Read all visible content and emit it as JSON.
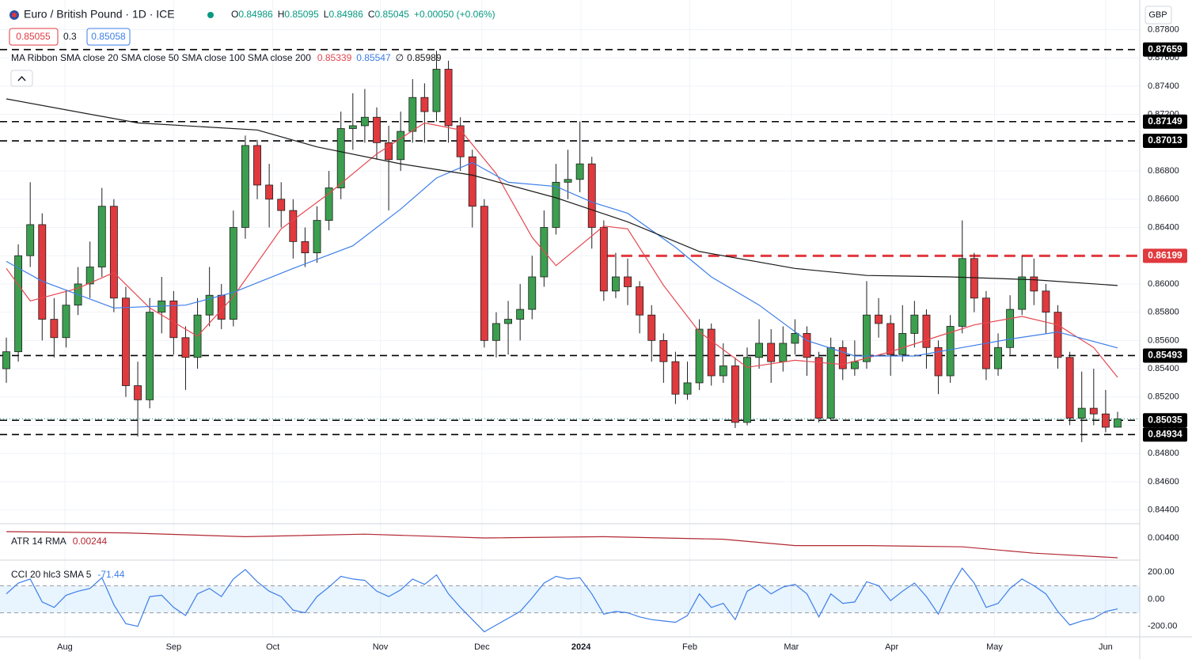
{
  "chart_data": {
    "type": "candlestick",
    "title": "Euro / British Pound · 1D · ICE",
    "ohlc_prefixes": [
      "O",
      "H",
      "L",
      "C"
    ],
    "change": "+0.00050 (+0.06%)",
    "bid": "0.85055",
    "spread": "0.3",
    "ask": "0.85058",
    "currency": "GBP",
    "ma_legend": "MA Ribbon SMA close 20 SMA close 50 SMA close 100 SMA close 200",
    "ma_empty": "∅",
    "up_color": "#3c9f4f",
    "down_color": "#e0393e",
    "candles": [
      [
        0.854,
        0.8562,
        0.853,
        0.8552
      ],
      [
        0.8552,
        0.8628,
        0.8545,
        0.862
      ],
      [
        0.862,
        0.8672,
        0.8612,
        0.8642
      ],
      [
        0.8642,
        0.865,
        0.856,
        0.8575
      ],
      [
        0.8575,
        0.859,
        0.8548,
        0.8562
      ],
      [
        0.8562,
        0.8596,
        0.8555,
        0.8585
      ],
      [
        0.8585,
        0.8612,
        0.8578,
        0.86
      ],
      [
        0.86,
        0.863,
        0.859,
        0.8612
      ],
      [
        0.8612,
        0.8668,
        0.8605,
        0.8655
      ],
      [
        0.8655,
        0.866,
        0.858,
        0.859
      ],
      [
        0.859,
        0.8598,
        0.852,
        0.8528
      ],
      [
        0.8528,
        0.8545,
        0.8492,
        0.8518
      ],
      [
        0.8518,
        0.859,
        0.8512,
        0.858
      ],
      [
        0.858,
        0.8605,
        0.8565,
        0.8588
      ],
      [
        0.8588,
        0.8595,
        0.855,
        0.8562
      ],
      [
        0.8562,
        0.857,
        0.8525,
        0.8548
      ],
      [
        0.8548,
        0.859,
        0.854,
        0.8578
      ],
      [
        0.8578,
        0.8612,
        0.857,
        0.8592
      ],
      [
        0.8592,
        0.86,
        0.8568,
        0.8575
      ],
      [
        0.8575,
        0.8652,
        0.857,
        0.864
      ],
      [
        0.864,
        0.8705,
        0.8632,
        0.8698
      ],
      [
        0.8698,
        0.8702,
        0.866,
        0.867
      ],
      [
        0.867,
        0.8685,
        0.864,
        0.866
      ],
      [
        0.866,
        0.8672,
        0.864,
        0.8652
      ],
      [
        0.8652,
        0.866,
        0.8618,
        0.863
      ],
      [
        0.863,
        0.864,
        0.8612,
        0.8622
      ],
      [
        0.8622,
        0.8655,
        0.8615,
        0.8645
      ],
      [
        0.8645,
        0.868,
        0.8638,
        0.8668
      ],
      [
        0.8668,
        0.8722,
        0.866,
        0.871
      ],
      [
        0.871,
        0.8735,
        0.8695,
        0.8712
      ],
      [
        0.8712,
        0.8738,
        0.87,
        0.8718
      ],
      [
        0.8718,
        0.8725,
        0.8688,
        0.87
      ],
      [
        0.87,
        0.8712,
        0.8652,
        0.8688
      ],
      [
        0.8688,
        0.8722,
        0.868,
        0.8708
      ],
      [
        0.8708,
        0.8745,
        0.87,
        0.8732
      ],
      [
        0.8732,
        0.8742,
        0.87,
        0.8722
      ],
      [
        0.8722,
        0.8765,
        0.8715,
        0.8752
      ],
      [
        0.8752,
        0.8758,
        0.87,
        0.8712
      ],
      [
        0.8712,
        0.8718,
        0.868,
        0.869
      ],
      [
        0.869,
        0.8695,
        0.864,
        0.8655
      ],
      [
        0.8655,
        0.866,
        0.8555,
        0.856
      ],
      [
        0.856,
        0.858,
        0.8548,
        0.8572
      ],
      [
        0.8572,
        0.8588,
        0.855,
        0.8575
      ],
      [
        0.8575,
        0.86,
        0.856,
        0.8582
      ],
      [
        0.8582,
        0.862,
        0.8575,
        0.8605
      ],
      [
        0.8605,
        0.8652,
        0.8598,
        0.864
      ],
      [
        0.864,
        0.8685,
        0.8635,
        0.8672
      ],
      [
        0.8672,
        0.8695,
        0.866,
        0.8674
      ],
      [
        0.8674,
        0.8715,
        0.8665,
        0.8685
      ],
      [
        0.8685,
        0.869,
        0.8625,
        0.864
      ],
      [
        0.864,
        0.8645,
        0.8588,
        0.8595
      ],
      [
        0.8595,
        0.8622,
        0.859,
        0.8605
      ],
      [
        0.8605,
        0.8618,
        0.8585,
        0.8598
      ],
      [
        0.8598,
        0.8602,
        0.8565,
        0.8578
      ],
      [
        0.8578,
        0.8585,
        0.8545,
        0.856
      ],
      [
        0.856,
        0.8565,
        0.853,
        0.8545
      ],
      [
        0.8545,
        0.8552,
        0.8515,
        0.8522
      ],
      [
        0.8522,
        0.8545,
        0.8518,
        0.853
      ],
      [
        0.853,
        0.8575,
        0.8525,
        0.8568
      ],
      [
        0.8568,
        0.8572,
        0.8528,
        0.8535
      ],
      [
        0.8535,
        0.8558,
        0.853,
        0.8542
      ],
      [
        0.8542,
        0.8548,
        0.8498,
        0.8502
      ],
      [
        0.8502,
        0.8555,
        0.85,
        0.8548
      ],
      [
        0.8548,
        0.8575,
        0.854,
        0.8558
      ],
      [
        0.8558,
        0.8568,
        0.853,
        0.8545
      ],
      [
        0.8545,
        0.857,
        0.8538,
        0.8558
      ],
      [
        0.8558,
        0.8575,
        0.855,
        0.8565
      ],
      [
        0.8565,
        0.857,
        0.8535,
        0.8548
      ],
      [
        0.8548,
        0.8552,
        0.8502,
        0.8505
      ],
      [
        0.8505,
        0.8562,
        0.8503,
        0.8555
      ],
      [
        0.8555,
        0.856,
        0.8532,
        0.854
      ],
      [
        0.854,
        0.856,
        0.8535,
        0.8545
      ],
      [
        0.8545,
        0.8602,
        0.854,
        0.8578
      ],
      [
        0.8578,
        0.859,
        0.8562,
        0.8572
      ],
      [
        0.8572,
        0.8578,
        0.8535,
        0.855
      ],
      [
        0.855,
        0.8585,
        0.8545,
        0.8565
      ],
      [
        0.8565,
        0.8588,
        0.8555,
        0.8578
      ],
      [
        0.8578,
        0.8582,
        0.854,
        0.8555
      ],
      [
        0.8555,
        0.856,
        0.8522,
        0.8535
      ],
      [
        0.8535,
        0.8578,
        0.853,
        0.857
      ],
      [
        0.857,
        0.8645,
        0.8565,
        0.8618
      ],
      [
        0.8618,
        0.8622,
        0.858,
        0.859
      ],
      [
        0.859,
        0.8595,
        0.8532,
        0.854
      ],
      [
        0.854,
        0.8565,
        0.8535,
        0.8555
      ],
      [
        0.8555,
        0.8592,
        0.855,
        0.8582
      ],
      [
        0.8582,
        0.862,
        0.8578,
        0.8605
      ],
      [
        0.8605,
        0.8618,
        0.8585,
        0.8595
      ],
      [
        0.8595,
        0.86,
        0.8565,
        0.858
      ],
      [
        0.858,
        0.8585,
        0.854,
        0.8548
      ],
      [
        0.8548,
        0.8552,
        0.85,
        0.8505
      ],
      [
        0.8505,
        0.8538,
        0.8488,
        0.8512
      ],
      [
        0.8512,
        0.854,
        0.85,
        0.8508
      ],
      [
        0.8508,
        0.8525,
        0.8495,
        0.84986
      ],
      [
        0.84986,
        0.85095,
        0.84986,
        0.85045
      ]
    ],
    "ma": [
      {
        "color": "#e5474f",
        "x": [
          0,
          2,
          6,
          9,
          12,
          16,
          19,
          23,
          27,
          31,
          35,
          38,
          41,
          44,
          46,
          50,
          52,
          55,
          58,
          62,
          66,
          70,
          74,
          78,
          81,
          85,
          88,
          91,
          93
        ],
        "values": [
          0.8611,
          0.8588,
          0.8597,
          0.8608,
          0.8583,
          0.8563,
          0.8591,
          0.8639,
          0.8664,
          0.8692,
          0.8714,
          0.8709,
          0.8678,
          0.8633,
          0.8613,
          0.8641,
          0.8639,
          0.8599,
          0.8566,
          0.8541,
          0.8546,
          0.8543,
          0.8552,
          0.8563,
          0.8571,
          0.8577,
          0.8571,
          0.8555,
          0.85339
        ]
      },
      {
        "color": "#3d7ee8",
        "x": [
          0,
          3,
          9,
          15,
          19,
          24,
          29,
          33,
          36,
          39,
          42,
          46,
          49,
          52,
          56,
          59,
          63,
          67,
          71,
          76,
          80,
          84,
          88,
          93
        ],
        "values": [
          0.8616,
          0.8602,
          0.8583,
          0.8585,
          0.8594,
          0.8611,
          0.8627,
          0.8653,
          0.8675,
          0.8686,
          0.8672,
          0.8669,
          0.8658,
          0.865,
          0.8626,
          0.8605,
          0.8585,
          0.856,
          0.8549,
          0.8549,
          0.8555,
          0.8561,
          0.8566,
          0.85547
        ]
      },
      {
        "color": "#1b1b1b",
        "x": [
          0,
          11,
          21,
          26,
          33,
          39,
          46,
          52,
          58,
          66,
          72,
          79,
          86,
          93
        ],
        "values": [
          0.8731,
          0.8714,
          0.8709,
          0.8697,
          0.8685,
          0.8677,
          0.8661,
          0.8644,
          0.8623,
          0.8611,
          0.8606,
          0.8605,
          0.8603,
          0.85989
        ]
      }
    ],
    "levels": [
      {
        "value": 0.87659,
        "color": "#000000"
      },
      {
        "value": 0.87149,
        "color": "#000000"
      },
      {
        "value": 0.87013,
        "color": "#000000"
      },
      {
        "value": 0.86199,
        "color": "#e0393e",
        "start": 50
      },
      {
        "value": 0.85493,
        "color": "#000000"
      },
      {
        "value": 0.85035,
        "color": "#000000"
      },
      {
        "value": 0.84934,
        "color": "#000000"
      }
    ],
    "last_price_color": "#089981",
    "xlim": [
      0,
      93
    ],
    "xticks": [
      {
        "value": 4.9,
        "label": "Aug"
      },
      {
        "value": 14,
        "label": "Sep"
      },
      {
        "value": 22.3,
        "label": "Oct"
      },
      {
        "value": 31.3,
        "label": "Nov"
      },
      {
        "value": 39.8,
        "label": "Dec"
      },
      {
        "value": 48.1,
        "label": "2024"
      },
      {
        "value": 57.2,
        "label": "Feb"
      },
      {
        "value": 65.7,
        "label": "Mar"
      },
      {
        "value": 74.1,
        "label": "Apr"
      },
      {
        "value": 82.7,
        "label": "May"
      },
      {
        "value": 92,
        "label": "Jun"
      }
    ],
    "ylim": [
      0.84314,
      0.8801
    ],
    "yticks": [
      {
        "value": 0.878,
        "label": "0.87800"
      },
      {
        "value": 0.876,
        "label": "0.87600"
      },
      {
        "value": 0.874,
        "label": "0.87400"
      },
      {
        "value": 0.872,
        "label": "0.87200"
      },
      {
        "value": 0.87,
        "label": "0.87000"
      },
      {
        "value": 0.868,
        "label": "0.86800"
      },
      {
        "value": 0.866,
        "label": "0.86600"
      },
      {
        "value": 0.864,
        "label": "0.86400"
      },
      {
        "value": 0.862,
        "label": "0.86200"
      },
      {
        "value": 0.86,
        "label": "0.86000"
      },
      {
        "value": 0.858,
        "label": "0.85800"
      },
      {
        "value": 0.856,
        "label": "0.85600"
      },
      {
        "value": 0.854,
        "label": "0.85400"
      },
      {
        "value": 0.852,
        "label": "0.85200"
      },
      {
        "value": 0.85,
        "label": "0.85000"
      },
      {
        "value": 0.848,
        "label": "0.84800"
      },
      {
        "value": 0.846,
        "label": "0.84600"
      },
      {
        "value": 0.844,
        "label": "0.84400"
      }
    ],
    "grid": true,
    "atr": {
      "label": "ATR 14 RMA",
      "color": "#b22833",
      "x": [
        0,
        10,
        20,
        30,
        40,
        50,
        60,
        66,
        72,
        80,
        86,
        93
      ],
      "values": [
        0.0045,
        0.0044,
        0.0041,
        0.0043,
        0.004,
        0.0041,
        0.0039,
        0.0034,
        0.0034,
        0.0033,
        0.0028,
        0.00244
      ],
      "ylim": [
        0.00225,
        0.005125
      ],
      "yticks": [
        {
          "value": 0.004,
          "label": "0.00400"
        }
      ]
    },
    "cci": {
      "label": "CCI 20 hlc3 SMA 5",
      "color": "#3d7ee8",
      "values": [
        40,
        120,
        150,
        -20,
        -60,
        30,
        60,
        80,
        160,
        -40,
        -180,
        -200,
        20,
        30,
        -60,
        -120,
        40,
        80,
        20,
        150,
        220,
        130,
        60,
        20,
        -80,
        -100,
        20,
        90,
        170,
        150,
        140,
        60,
        20,
        70,
        150,
        110,
        180,
        40,
        -60,
        -150,
        -240,
        -190,
        -140,
        -90,
        10,
        120,
        170,
        150,
        160,
        40,
        -110,
        -90,
        -100,
        -130,
        -150,
        -160,
        -170,
        -120,
        40,
        -60,
        -30,
        -150,
        60,
        110,
        40,
        90,
        110,
        40,
        -130,
        40,
        -30,
        -20,
        130,
        100,
        -10,
        60,
        120,
        20,
        -110,
        80,
        230,
        120,
        -60,
        -30,
        80,
        150,
        100,
        40,
        -90,
        -190,
        -160,
        -140,
        -90,
        -71.44
      ],
      "ylim": [
        -277.6,
        289.6
      ],
      "band": [
        -100,
        100
      ],
      "yticks": [
        {
          "value": 200,
          "label": "200.00"
        },
        {
          "value": 0,
          "label": "0.00"
        },
        {
          "value": -200,
          "label": "-200.00"
        }
      ]
    }
  }
}
